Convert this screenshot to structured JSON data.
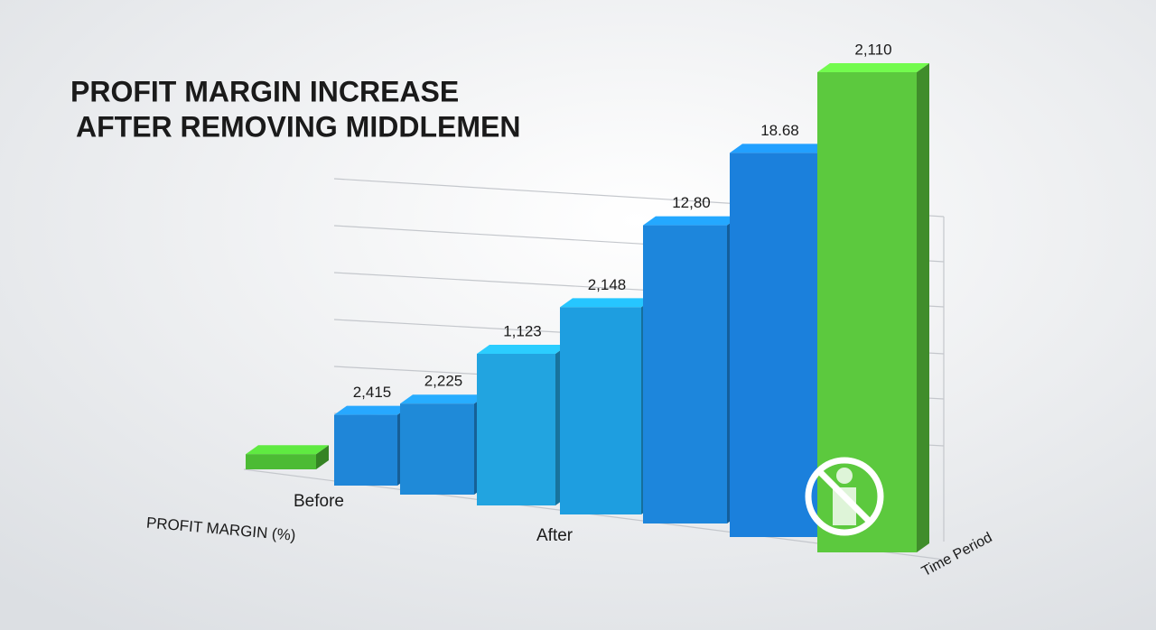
{
  "chart_data": {
    "type": "bar",
    "title": [
      "PROFIT MARGIN INCREASE",
      "AFTER REMOVING MIDDLEMEN"
    ],
    "y_label": "PROFIT MARGIN (%)",
    "x_label": "Time Period",
    "period_labels": [
      "Before",
      "After"
    ],
    "values": [
      3,
      14,
      18,
      30,
      41,
      59,
      76,
      95
    ],
    "ylim": [
      0,
      100
    ],
    "annotations": [
      "2,415",
      "2,225",
      "1,123",
      "2,148",
      "12,80",
      "18.68",
      "2,110"
    ],
    "colors": [
      "#4cbb34",
      "#1f86d8",
      "#1f8ad8",
      "#22a4e0",
      "#1e9ee0",
      "#1d86dc",
      "#1b80dc",
      "#5cc93e"
    ],
    "grid": true
  }
}
